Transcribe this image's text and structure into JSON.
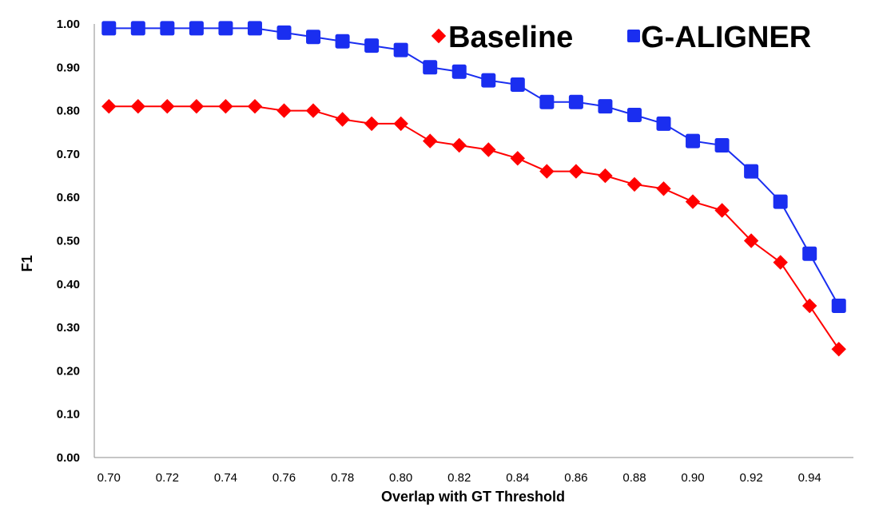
{
  "chart_data": {
    "type": "line",
    "xlabel": "Overlap with GT Threshold",
    "ylabel": "F1",
    "ylim": [
      0,
      1
    ],
    "xlim": [
      0.695,
      0.955
    ],
    "grid": false,
    "legend_position": "top-right",
    "x": [
      0.7,
      0.71,
      0.72,
      0.73,
      0.74,
      0.75,
      0.76,
      0.77,
      0.78,
      0.79,
      0.8,
      0.81,
      0.82,
      0.83,
      0.84,
      0.85,
      0.86,
      0.87,
      0.88,
      0.89,
      0.9,
      0.91,
      0.92,
      0.93,
      0.94,
      0.95
    ],
    "x_tick_labels": [
      "0.70",
      "0.72",
      "0.74",
      "0.76",
      "0.78",
      "0.80",
      "0.82",
      "0.84",
      "0.86",
      "0.88",
      "0.90",
      "0.92",
      "0.94"
    ],
    "x_tick_values": [
      0.7,
      0.72,
      0.74,
      0.76,
      0.78,
      0.8,
      0.82,
      0.84,
      0.86,
      0.88,
      0.9,
      0.92,
      0.94
    ],
    "y_tick_labels": [
      "0.00",
      "0.10",
      "0.20",
      "0.30",
      "0.40",
      "0.50",
      "0.60",
      "0.70",
      "0.80",
      "0.90",
      "1.00"
    ],
    "y_tick_values": [
      0,
      0.1,
      0.2,
      0.3,
      0.4,
      0.5,
      0.6,
      0.7,
      0.8,
      0.9,
      1.0
    ],
    "series": [
      {
        "name": "Baseline",
        "color": "#ff0000",
        "marker": "diamond",
        "values": [
          0.81,
          0.81,
          0.81,
          0.81,
          0.81,
          0.81,
          0.8,
          0.8,
          0.78,
          0.77,
          0.77,
          0.73,
          0.72,
          0.71,
          0.69,
          0.66,
          0.66,
          0.65,
          0.63,
          0.62,
          0.59,
          0.57,
          0.5,
          0.45,
          0.35,
          0.25
        ]
      },
      {
        "name": "G-ALIGNER",
        "color": "#1a2ef0",
        "marker": "square",
        "values": [
          0.99,
          0.99,
          0.99,
          0.99,
          0.99,
          0.99,
          0.98,
          0.97,
          0.96,
          0.95,
          0.94,
          0.9,
          0.89,
          0.87,
          0.86,
          0.82,
          0.82,
          0.81,
          0.79,
          0.77,
          0.73,
          0.72,
          0.66,
          0.59,
          0.47,
          0.35
        ]
      }
    ]
  }
}
